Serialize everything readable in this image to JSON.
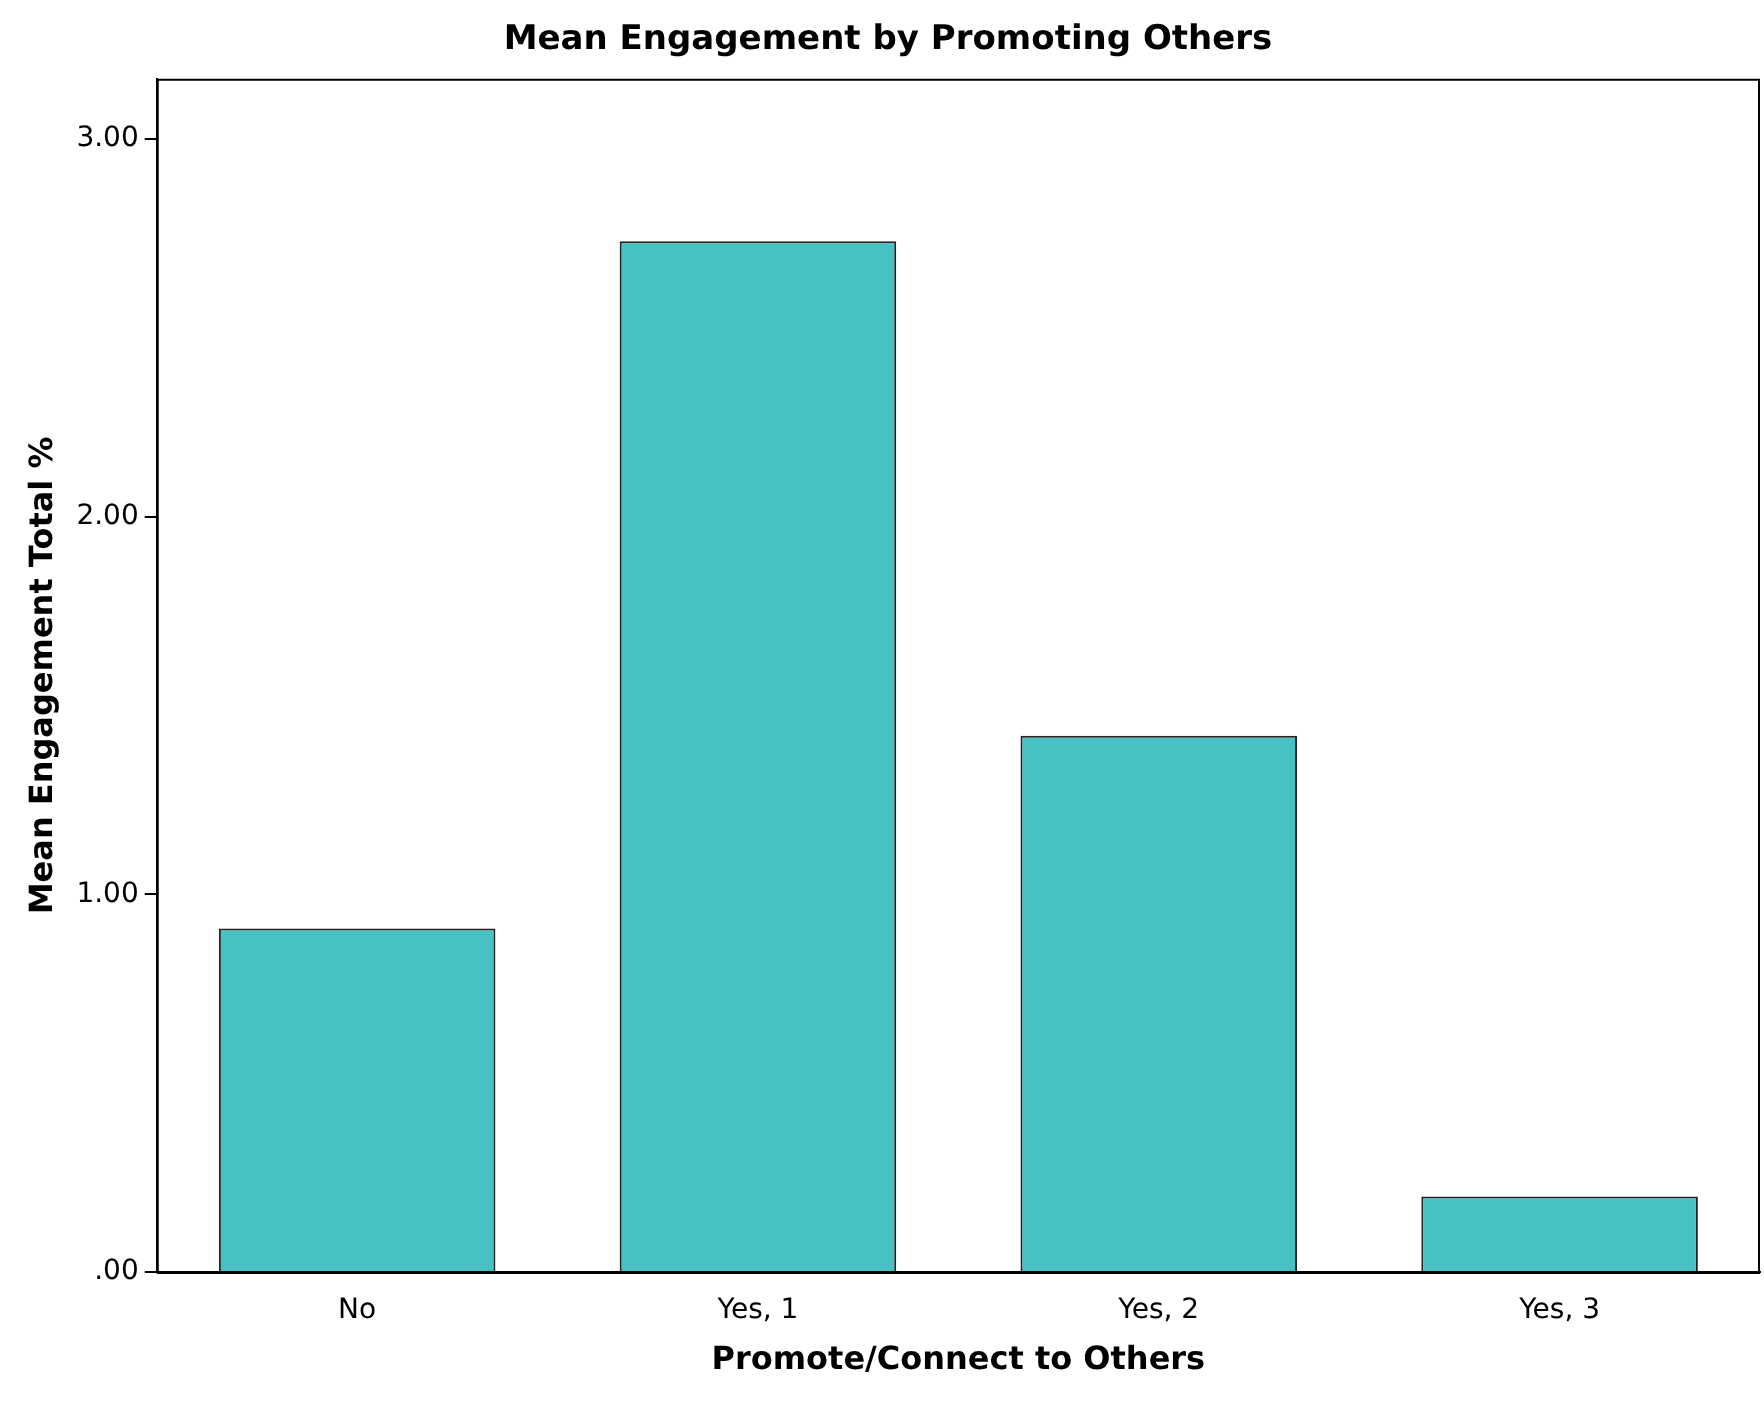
{
  "chart_data": {
    "type": "bar",
    "title": "Mean Engagement by Promoting Others",
    "xlabel": "Promote/Connect to Others",
    "ylabel": "Mean Engagement Total %",
    "categories": [
      "No",
      "Yes, 1",
      "Yes, 2",
      "Yes, 3"
    ],
    "values": [
      0.91,
      2.73,
      1.42,
      0.2
    ],
    "color": "#48c1c5",
    "ylim": [
      0,
      3.16
    ],
    "yticks": [
      {
        "value": 0,
        "label": ".00"
      },
      {
        "value": 1,
        "label": "1.00"
      },
      {
        "value": 2,
        "label": "2.00"
      },
      {
        "value": 3,
        "label": "3.00"
      }
    ],
    "grid": false,
    "legend": false
  }
}
